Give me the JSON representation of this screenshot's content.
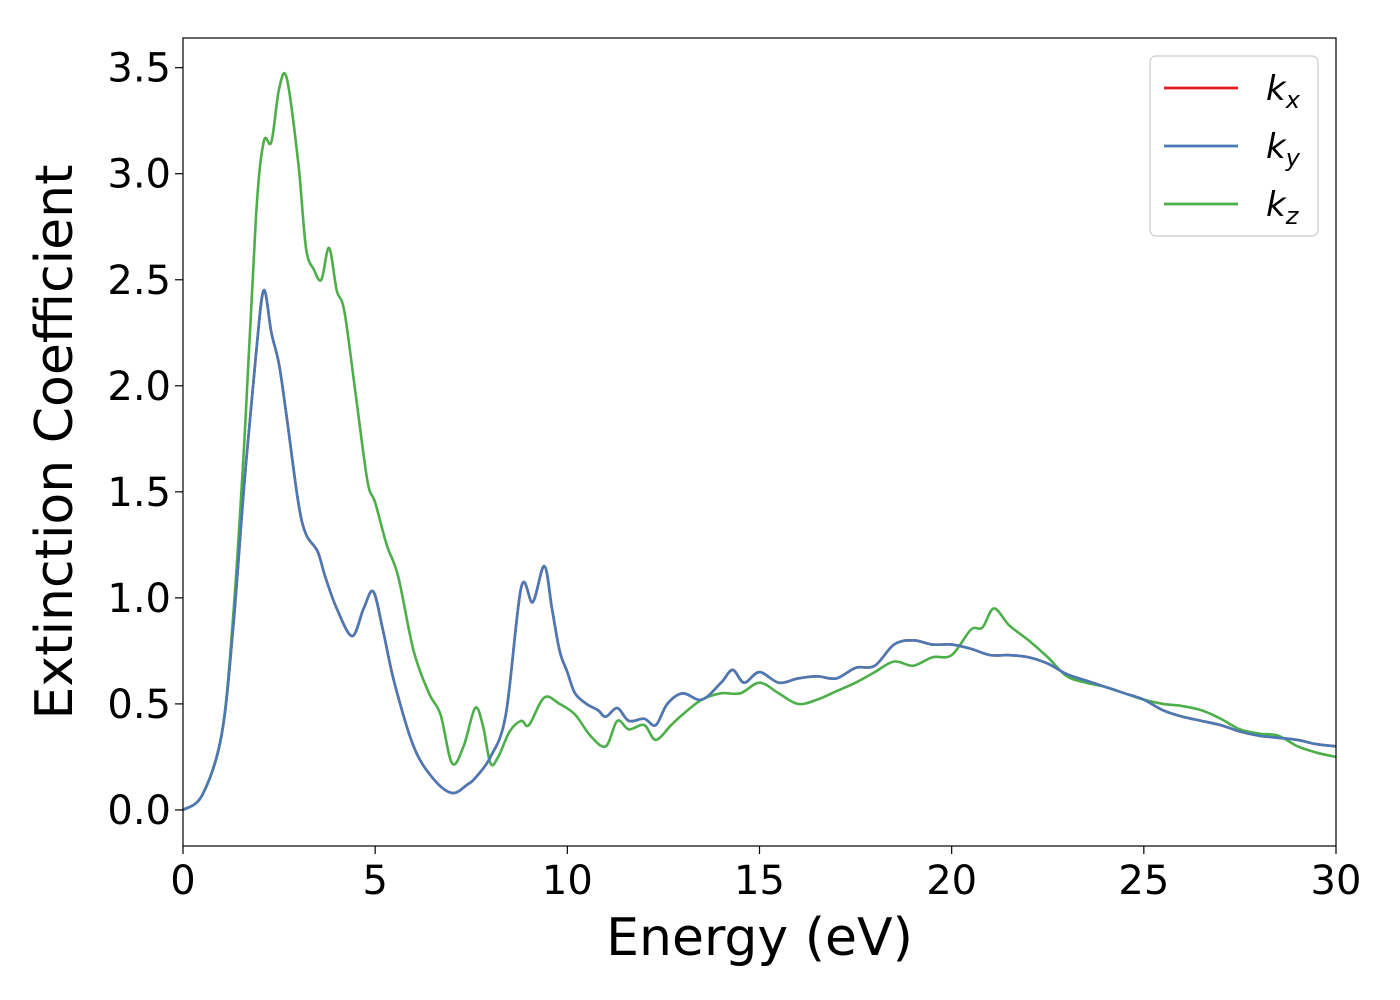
{
  "chart_data": {
    "type": "line",
    "title": "",
    "xlabel": "Energy (eV)",
    "ylabel": "Extinction Coefficient",
    "xlim": [
      0,
      30
    ],
    "ylim": [
      -0.17,
      3.64
    ],
    "xticks": [
      "0",
      "5",
      "10",
      "15",
      "20",
      "25",
      "30"
    ],
    "yticks": [
      "0.0",
      "0.5",
      "1.0",
      "1.5",
      "2.0",
      "2.5",
      "3.0",
      "3.5"
    ],
    "grid": false,
    "legend_position": "top-right",
    "colors": {
      "kx": "#e41a1c",
      "ky": "#4a7ab5",
      "kz": "#4daf4a"
    },
    "series": [
      {
        "key": "kx",
        "name": "k",
        "subscript": "x",
        "color": "#e41a1c",
        "x": [
          0,
          0.5,
          1.0,
          1.3,
          1.6,
          1.9,
          2.1,
          2.3,
          2.5,
          2.7,
          3.0,
          3.2,
          3.5,
          3.7,
          4.0,
          4.4,
          4.7,
          4.95,
          5.2,
          5.5,
          6.0,
          6.5,
          7.0,
          7.4,
          7.6,
          8.0,
          8.4,
          8.8,
          9.1,
          9.4,
          9.6,
          9.8,
          10.0,
          10.2,
          10.5,
          10.8,
          11.0,
          11.3,
          11.6,
          12.0,
          12.3,
          12.6,
          13.0,
          13.5,
          14.0,
          14.3,
          14.6,
          15.0,
          15.5,
          16.0,
          16.5,
          17.0,
          17.5,
          18.0,
          18.5,
          19.0,
          19.5,
          20.0,
          20.5,
          21.0,
          21.5,
          22.0,
          22.5,
          23.0,
          23.5,
          24.0,
          24.5,
          25.0,
          25.5,
          26.0,
          26.5,
          27.0,
          27.5,
          28.0,
          28.5,
          29.0,
          29.5,
          30.0
        ],
        "y": [
          0.0,
          0.07,
          0.35,
          0.85,
          1.55,
          2.15,
          2.45,
          2.25,
          2.1,
          1.85,
          1.45,
          1.3,
          1.22,
          1.1,
          0.95,
          0.82,
          0.95,
          1.03,
          0.85,
          0.6,
          0.3,
          0.15,
          0.08,
          0.12,
          0.15,
          0.25,
          0.45,
          1.05,
          0.98,
          1.15,
          0.95,
          0.75,
          0.65,
          0.55,
          0.5,
          0.47,
          0.44,
          0.48,
          0.42,
          0.43,
          0.4,
          0.5,
          0.55,
          0.52,
          0.6,
          0.66,
          0.6,
          0.65,
          0.6,
          0.62,
          0.63,
          0.62,
          0.67,
          0.68,
          0.78,
          0.8,
          0.78,
          0.78,
          0.76,
          0.73,
          0.73,
          0.72,
          0.69,
          0.64,
          0.61,
          0.58,
          0.55,
          0.52,
          0.47,
          0.44,
          0.42,
          0.4,
          0.37,
          0.35,
          0.34,
          0.33,
          0.31,
          0.3
        ]
      },
      {
        "key": "ky",
        "name": "k",
        "subscript": "y",
        "color": "#4a7ab5",
        "x": [
          0,
          0.5,
          1.0,
          1.3,
          1.6,
          1.9,
          2.1,
          2.3,
          2.5,
          2.7,
          3.0,
          3.2,
          3.5,
          3.7,
          4.0,
          4.4,
          4.7,
          4.95,
          5.2,
          5.5,
          6.0,
          6.5,
          7.0,
          7.4,
          7.6,
          8.0,
          8.4,
          8.8,
          9.1,
          9.4,
          9.6,
          9.8,
          10.0,
          10.2,
          10.5,
          10.8,
          11.0,
          11.3,
          11.6,
          12.0,
          12.3,
          12.6,
          13.0,
          13.5,
          14.0,
          14.3,
          14.6,
          15.0,
          15.5,
          16.0,
          16.5,
          17.0,
          17.5,
          18.0,
          18.5,
          19.0,
          19.5,
          20.0,
          20.5,
          21.0,
          21.5,
          22.0,
          22.5,
          23.0,
          23.5,
          24.0,
          24.5,
          25.0,
          25.5,
          26.0,
          26.5,
          27.0,
          27.5,
          28.0,
          28.5,
          29.0,
          29.5,
          30.0
        ],
        "y": [
          0.0,
          0.07,
          0.35,
          0.85,
          1.55,
          2.15,
          2.45,
          2.25,
          2.1,
          1.85,
          1.45,
          1.3,
          1.22,
          1.1,
          0.95,
          0.82,
          0.95,
          1.03,
          0.85,
          0.6,
          0.3,
          0.15,
          0.08,
          0.12,
          0.15,
          0.25,
          0.45,
          1.05,
          0.98,
          1.15,
          0.95,
          0.75,
          0.65,
          0.55,
          0.5,
          0.47,
          0.44,
          0.48,
          0.42,
          0.43,
          0.4,
          0.5,
          0.55,
          0.52,
          0.6,
          0.66,
          0.6,
          0.65,
          0.6,
          0.62,
          0.63,
          0.62,
          0.67,
          0.68,
          0.78,
          0.8,
          0.78,
          0.78,
          0.76,
          0.73,
          0.73,
          0.72,
          0.69,
          0.64,
          0.61,
          0.58,
          0.55,
          0.52,
          0.47,
          0.44,
          0.42,
          0.4,
          0.37,
          0.35,
          0.34,
          0.33,
          0.31,
          0.3
        ]
      },
      {
        "key": "kz",
        "name": "k",
        "subscript": "z",
        "color": "#4daf4a",
        "x": [
          0,
          0.5,
          1.0,
          1.3,
          1.6,
          1.9,
          2.1,
          2.3,
          2.5,
          2.7,
          3.0,
          3.2,
          3.4,
          3.6,
          3.8,
          4.0,
          4.2,
          4.5,
          4.8,
          5.0,
          5.3,
          5.6,
          6.0,
          6.4,
          6.7,
          7.0,
          7.3,
          7.6,
          7.8,
          8.0,
          8.2,
          8.5,
          8.8,
          9.0,
          9.4,
          9.8,
          10.2,
          10.6,
          11.0,
          11.3,
          11.6,
          12.0,
          12.3,
          12.7,
          13.0,
          13.5,
          14.0,
          14.5,
          15.0,
          15.5,
          16.0,
          16.5,
          17.0,
          17.5,
          18.0,
          18.5,
          19.0,
          19.5,
          20.0,
          20.5,
          20.8,
          21.1,
          21.5,
          22.0,
          22.5,
          23.0,
          23.5,
          24.0,
          24.5,
          25.0,
          25.5,
          26.0,
          26.5,
          27.0,
          27.5,
          28.0,
          28.5,
          29.0,
          29.5,
          30.0
        ],
        "y": [
          0.0,
          0.07,
          0.35,
          0.9,
          1.75,
          2.8,
          3.15,
          3.15,
          3.4,
          3.45,
          3.05,
          2.65,
          2.55,
          2.5,
          2.65,
          2.45,
          2.35,
          1.95,
          1.55,
          1.45,
          1.25,
          1.1,
          0.75,
          0.55,
          0.45,
          0.22,
          0.3,
          0.48,
          0.4,
          0.22,
          0.25,
          0.37,
          0.42,
          0.4,
          0.53,
          0.5,
          0.45,
          0.35,
          0.3,
          0.42,
          0.38,
          0.4,
          0.33,
          0.4,
          0.45,
          0.52,
          0.55,
          0.55,
          0.6,
          0.55,
          0.5,
          0.52,
          0.56,
          0.6,
          0.65,
          0.7,
          0.68,
          0.72,
          0.73,
          0.85,
          0.86,
          0.95,
          0.87,
          0.8,
          0.72,
          0.63,
          0.6,
          0.58,
          0.55,
          0.52,
          0.5,
          0.49,
          0.47,
          0.43,
          0.38,
          0.36,
          0.35,
          0.3,
          0.27,
          0.25
        ]
      }
    ]
  }
}
